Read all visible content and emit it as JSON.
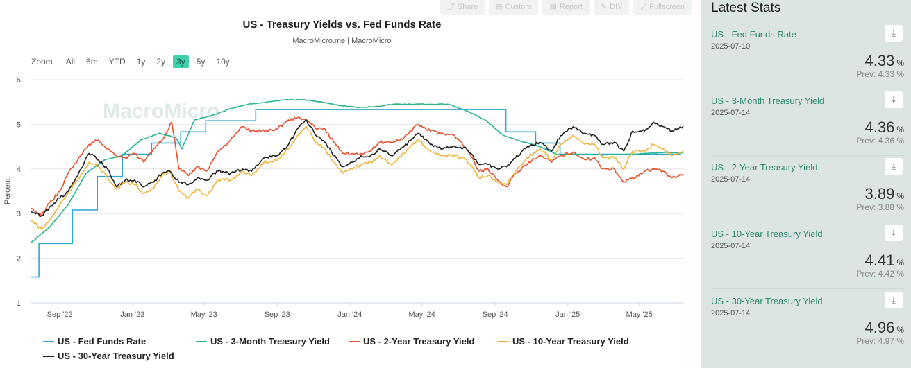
{
  "toolbar": {
    "share": "Share",
    "custom": "Custom",
    "report": "Report",
    "edit": "DIY",
    "fullscreen": "Fullscreen"
  },
  "chart": {
    "title": "US - Treasury Yields vs. Fed Funds Rate",
    "subtitle": "MacroMicro.me | MacroMicro",
    "watermark": "MacroMicro",
    "zoom": {
      "label": "Zoom",
      "options": [
        "All",
        "6m",
        "YTD",
        "1y",
        "2y",
        "3y",
        "5y",
        "10y"
      ],
      "active": "3y"
    }
  },
  "chart_data": {
    "type": "line",
    "title": "US - Treasury Yields vs. Fed Funds Rate",
    "subtitle": "MacroMicro.me | MacroMicro",
    "xlabel": "",
    "ylabel": "Percent",
    "ylim": [
      1,
      6
    ],
    "xlim": [
      "2022-07-15",
      "2025-07-15"
    ],
    "y_ticks": [
      1,
      2,
      3,
      4,
      5,
      6
    ],
    "x_ticks": [
      {
        "date": "2022-09-01",
        "label": "Sep '22"
      },
      {
        "date": "2023-01-01",
        "label": "Jan '23"
      },
      {
        "date": "2023-05-01",
        "label": "May '23"
      },
      {
        "date": "2023-09-01",
        "label": "Sep '23"
      },
      {
        "date": "2024-01-01",
        "label": "Jan '24"
      },
      {
        "date": "2024-05-01",
        "label": "May '24"
      },
      {
        "date": "2024-09-01",
        "label": "Sep '24"
      },
      {
        "date": "2025-01-01",
        "label": "Jan '25"
      },
      {
        "date": "2025-05-01",
        "label": "May '25"
      }
    ],
    "grid": true,
    "legend_position": "bottom",
    "series": [
      {
        "name": "US - Fed Funds Rate",
        "color": "#2ba7d8",
        "step": true,
        "points": [
          [
            "2022-07-15",
            1.58
          ],
          [
            "2022-07-28",
            2.33
          ],
          [
            "2022-09-22",
            3.08
          ],
          [
            "2022-11-03",
            3.83
          ],
          [
            "2022-12-15",
            4.33
          ],
          [
            "2023-02-02",
            4.58
          ],
          [
            "2023-03-23",
            4.83
          ],
          [
            "2023-05-04",
            5.08
          ],
          [
            "2023-07-27",
            5.33
          ],
          [
            "2024-09-19",
            4.83
          ],
          [
            "2024-11-08",
            4.58
          ],
          [
            "2024-12-19",
            4.33
          ],
          [
            "2025-07-10",
            4.33
          ]
        ]
      },
      {
        "name": "US - 3-Month Treasury Yield",
        "color": "#26b58e",
        "points": [
          [
            "2022-07-15",
            2.35
          ],
          [
            "2022-08-15",
            2.7
          ],
          [
            "2022-09-15",
            3.2
          ],
          [
            "2022-10-15",
            3.9
          ],
          [
            "2022-11-15",
            4.2
          ],
          [
            "2022-12-15",
            4.3
          ],
          [
            "2023-01-15",
            4.65
          ],
          [
            "2023-02-15",
            4.8
          ],
          [
            "2023-03-15",
            4.7
          ],
          [
            "2023-03-25",
            4.45
          ],
          [
            "2023-04-15",
            5.1
          ],
          [
            "2023-05-15",
            5.2
          ],
          [
            "2023-06-15",
            5.35
          ],
          [
            "2023-07-15",
            5.45
          ],
          [
            "2023-08-15",
            5.5
          ],
          [
            "2023-09-15",
            5.55
          ],
          [
            "2023-10-15",
            5.55
          ],
          [
            "2023-11-15",
            5.5
          ],
          [
            "2023-12-15",
            5.42
          ],
          [
            "2024-01-15",
            5.38
          ],
          [
            "2024-02-15",
            5.4
          ],
          [
            "2024-03-15",
            5.45
          ],
          [
            "2024-04-15",
            5.45
          ],
          [
            "2024-05-15",
            5.45
          ],
          [
            "2024-06-15",
            5.45
          ],
          [
            "2024-07-15",
            5.3
          ],
          [
            "2024-08-15",
            5.1
          ],
          [
            "2024-09-15",
            4.75
          ],
          [
            "2024-10-15",
            4.62
          ],
          [
            "2024-11-15",
            4.5
          ],
          [
            "2024-12-15",
            4.32
          ],
          [
            "2025-01-15",
            4.33
          ],
          [
            "2025-02-15",
            4.32
          ],
          [
            "2025-03-15",
            4.32
          ],
          [
            "2025-04-15",
            4.33
          ],
          [
            "2025-05-15",
            4.35
          ],
          [
            "2025-06-15",
            4.37
          ],
          [
            "2025-07-14",
            4.36
          ]
        ]
      },
      {
        "name": "US - 2-Year Treasury Yield",
        "color": "#e84e2c",
        "points": [
          [
            "2022-07-15",
            3.12
          ],
          [
            "2022-08-01",
            2.95
          ],
          [
            "2022-08-15",
            3.25
          ],
          [
            "2022-09-01",
            3.5
          ],
          [
            "2022-09-15",
            3.9
          ],
          [
            "2022-10-01",
            4.2
          ],
          [
            "2022-10-20",
            4.55
          ],
          [
            "2022-11-05",
            4.65
          ],
          [
            "2022-11-20",
            4.45
          ],
          [
            "2022-12-05",
            4.3
          ],
          [
            "2022-12-20",
            4.25
          ],
          [
            "2023-01-05",
            4.35
          ],
          [
            "2023-01-20",
            4.15
          ],
          [
            "2023-02-05",
            4.45
          ],
          [
            "2023-02-20",
            4.65
          ],
          [
            "2023-03-08",
            5.05
          ],
          [
            "2023-03-20",
            4.0
          ],
          [
            "2023-04-05",
            3.85
          ],
          [
            "2023-04-20",
            4.05
          ],
          [
            "2023-05-05",
            3.95
          ],
          [
            "2023-05-25",
            4.4
          ],
          [
            "2023-06-15",
            4.65
          ],
          [
            "2023-07-05",
            4.95
          ],
          [
            "2023-07-20",
            4.85
          ],
          [
            "2023-08-10",
            4.85
          ],
          [
            "2023-09-01",
            4.9
          ],
          [
            "2023-09-20",
            5.1
          ],
          [
            "2023-10-05",
            5.15
          ],
          [
            "2023-10-20",
            5.1
          ],
          [
            "2023-11-05",
            4.9
          ],
          [
            "2023-11-20",
            4.9
          ],
          [
            "2023-12-05",
            4.6
          ],
          [
            "2023-12-20",
            4.35
          ],
          [
            "2024-01-05",
            4.35
          ],
          [
            "2024-01-20",
            4.35
          ],
          [
            "2024-02-05",
            4.4
          ],
          [
            "2024-02-20",
            4.6
          ],
          [
            "2024-03-10",
            4.6
          ],
          [
            "2024-04-01",
            4.7
          ],
          [
            "2024-04-25",
            5.0
          ],
          [
            "2024-05-15",
            4.85
          ],
          [
            "2024-06-05",
            4.8
          ],
          [
            "2024-06-25",
            4.75
          ],
          [
            "2024-07-15",
            4.45
          ],
          [
            "2024-08-05",
            3.95
          ],
          [
            "2024-08-20",
            4.0
          ],
          [
            "2024-09-05",
            3.75
          ],
          [
            "2024-09-20",
            3.6
          ],
          [
            "2024-10-05",
            3.9
          ],
          [
            "2024-10-25",
            4.1
          ],
          [
            "2024-11-15",
            4.3
          ],
          [
            "2024-12-05",
            4.15
          ],
          [
            "2024-12-20",
            4.3
          ],
          [
            "2025-01-10",
            4.38
          ],
          [
            "2025-01-30",
            4.2
          ],
          [
            "2025-02-15",
            4.25
          ],
          [
            "2025-03-01",
            4.0
          ],
          [
            "2025-03-20",
            4.0
          ],
          [
            "2025-04-05",
            3.7
          ],
          [
            "2025-04-20",
            3.8
          ],
          [
            "2025-05-10",
            3.95
          ],
          [
            "2025-05-25",
            4.0
          ],
          [
            "2025-06-10",
            3.95
          ],
          [
            "2025-06-25",
            3.8
          ],
          [
            "2025-07-14",
            3.89
          ]
        ]
      },
      {
        "name": "US - 10-Year Treasury Yield",
        "color": "#f0b43a",
        "points": [
          [
            "2022-07-15",
            2.85
          ],
          [
            "2022-08-01",
            2.65
          ],
          [
            "2022-08-15",
            2.85
          ],
          [
            "2022-09-01",
            3.2
          ],
          [
            "2022-09-15",
            3.45
          ],
          [
            "2022-10-01",
            3.75
          ],
          [
            "2022-10-20",
            4.15
          ],
          [
            "2022-11-05",
            4.05
          ],
          [
            "2022-11-20",
            3.8
          ],
          [
            "2022-12-05",
            3.55
          ],
          [
            "2022-12-20",
            3.7
          ],
          [
            "2023-01-05",
            3.65
          ],
          [
            "2023-01-20",
            3.45
          ],
          [
            "2023-02-05",
            3.55
          ],
          [
            "2023-02-20",
            3.85
          ],
          [
            "2023-03-05",
            3.95
          ],
          [
            "2023-03-20",
            3.5
          ],
          [
            "2023-04-05",
            3.35
          ],
          [
            "2023-04-20",
            3.55
          ],
          [
            "2023-05-05",
            3.4
          ],
          [
            "2023-05-25",
            3.75
          ],
          [
            "2023-06-15",
            3.75
          ],
          [
            "2023-07-05",
            3.95
          ],
          [
            "2023-07-20",
            3.85
          ],
          [
            "2023-08-10",
            4.15
          ],
          [
            "2023-09-01",
            4.2
          ],
          [
            "2023-09-20",
            4.45
          ],
          [
            "2023-10-05",
            4.75
          ],
          [
            "2023-10-20",
            4.95
          ],
          [
            "2023-11-05",
            4.6
          ],
          [
            "2023-11-20",
            4.45
          ],
          [
            "2023-12-05",
            4.15
          ],
          [
            "2023-12-20",
            3.9
          ],
          [
            "2024-01-05",
            4.0
          ],
          [
            "2024-01-20",
            4.1
          ],
          [
            "2024-02-05",
            4.15
          ],
          [
            "2024-02-20",
            4.3
          ],
          [
            "2024-03-10",
            4.1
          ],
          [
            "2024-04-01",
            4.35
          ],
          [
            "2024-04-25",
            4.65
          ],
          [
            "2024-05-15",
            4.4
          ],
          [
            "2024-06-05",
            4.3
          ],
          [
            "2024-06-25",
            4.3
          ],
          [
            "2024-07-15",
            4.2
          ],
          [
            "2024-08-05",
            3.8
          ],
          [
            "2024-08-20",
            3.85
          ],
          [
            "2024-09-05",
            3.7
          ],
          [
            "2024-09-20",
            3.65
          ],
          [
            "2024-10-05",
            3.95
          ],
          [
            "2024-10-25",
            4.25
          ],
          [
            "2024-11-15",
            4.45
          ],
          [
            "2024-12-05",
            4.2
          ],
          [
            "2024-12-20",
            4.55
          ],
          [
            "2025-01-10",
            4.75
          ],
          [
            "2025-01-30",
            4.55
          ],
          [
            "2025-02-15",
            4.55
          ],
          [
            "2025-03-01",
            4.25
          ],
          [
            "2025-03-20",
            4.25
          ],
          [
            "2025-04-05",
            4.0
          ],
          [
            "2025-04-20",
            4.4
          ],
          [
            "2025-05-10",
            4.4
          ],
          [
            "2025-05-25",
            4.55
          ],
          [
            "2025-06-10",
            4.45
          ],
          [
            "2025-06-25",
            4.3
          ],
          [
            "2025-07-14",
            4.41
          ]
        ]
      },
      {
        "name": "US - 30-Year Treasury Yield",
        "color": "#1e1e1e",
        "points": [
          [
            "2022-07-15",
            3.05
          ],
          [
            "2022-08-01",
            2.95
          ],
          [
            "2022-08-15",
            3.15
          ],
          [
            "2022-09-01",
            3.35
          ],
          [
            "2022-09-15",
            3.5
          ],
          [
            "2022-10-01",
            3.85
          ],
          [
            "2022-10-20",
            4.35
          ],
          [
            "2022-11-05",
            4.2
          ],
          [
            "2022-11-20",
            4.0
          ],
          [
            "2022-12-05",
            3.6
          ],
          [
            "2022-12-20",
            3.75
          ],
          [
            "2023-01-05",
            3.75
          ],
          [
            "2023-01-20",
            3.6
          ],
          [
            "2023-02-05",
            3.7
          ],
          [
            "2023-02-20",
            3.9
          ],
          [
            "2023-03-05",
            3.95
          ],
          [
            "2023-03-20",
            3.7
          ],
          [
            "2023-04-05",
            3.65
          ],
          [
            "2023-04-20",
            3.8
          ],
          [
            "2023-05-05",
            3.75
          ],
          [
            "2023-05-25",
            3.95
          ],
          [
            "2023-06-15",
            3.9
          ],
          [
            "2023-07-05",
            4.0
          ],
          [
            "2023-07-20",
            3.95
          ],
          [
            "2023-08-10",
            4.25
          ],
          [
            "2023-09-01",
            4.3
          ],
          [
            "2023-09-20",
            4.55
          ],
          [
            "2023-10-05",
            4.9
          ],
          [
            "2023-10-20",
            5.1
          ],
          [
            "2023-11-05",
            4.75
          ],
          [
            "2023-11-20",
            4.6
          ],
          [
            "2023-12-05",
            4.3
          ],
          [
            "2023-12-20",
            4.05
          ],
          [
            "2024-01-05",
            4.15
          ],
          [
            "2024-01-20",
            4.3
          ],
          [
            "2024-02-05",
            4.3
          ],
          [
            "2024-02-20",
            4.45
          ],
          [
            "2024-03-10",
            4.3
          ],
          [
            "2024-04-01",
            4.5
          ],
          [
            "2024-04-25",
            4.8
          ],
          [
            "2024-05-15",
            4.55
          ],
          [
            "2024-06-05",
            4.45
          ],
          [
            "2024-06-25",
            4.5
          ],
          [
            "2024-07-15",
            4.45
          ],
          [
            "2024-08-05",
            4.1
          ],
          [
            "2024-08-20",
            4.1
          ],
          [
            "2024-09-05",
            4.0
          ],
          [
            "2024-09-20",
            4.05
          ],
          [
            "2024-10-05",
            4.25
          ],
          [
            "2024-10-25",
            4.5
          ],
          [
            "2024-11-15",
            4.6
          ],
          [
            "2024-12-05",
            4.4
          ],
          [
            "2024-12-20",
            4.75
          ],
          [
            "2025-01-10",
            4.95
          ],
          [
            "2025-01-30",
            4.8
          ],
          [
            "2025-02-15",
            4.75
          ],
          [
            "2025-03-01",
            4.55
          ],
          [
            "2025-03-20",
            4.6
          ],
          [
            "2025-04-05",
            4.4
          ],
          [
            "2025-04-20",
            4.85
          ],
          [
            "2025-05-10",
            4.85
          ],
          [
            "2025-05-25",
            5.05
          ],
          [
            "2025-06-10",
            4.95
          ],
          [
            "2025-06-25",
            4.85
          ],
          [
            "2025-07-14",
            4.96
          ]
        ]
      }
    ]
  },
  "stats": {
    "title": "Latest Stats",
    "items": [
      {
        "name": "US - Fed Funds Rate",
        "date": "2025-07-10",
        "value": "4.33",
        "unit": "%",
        "prev": "Prev: 4.33 %"
      },
      {
        "name": "US - 3-Month Treasury Yield",
        "date": "2025-07-14",
        "value": "4.36",
        "unit": "%",
        "prev": "Prev: 4.36 %"
      },
      {
        "name": "US - 2-Year Treasury Yield",
        "date": "2025-07-14",
        "value": "3.89",
        "unit": "%",
        "prev": "Prev: 3.88 %"
      },
      {
        "name": "US - 10-Year Treasury Yield",
        "date": "2025-07-14",
        "value": "4.41",
        "unit": "%",
        "prev": "Prev: 4.42 %"
      },
      {
        "name": "US - 30-Year Treasury Yield",
        "date": "2025-07-14",
        "value": "4.96",
        "unit": "%",
        "prev": "Prev: 4.97 %"
      }
    ]
  }
}
